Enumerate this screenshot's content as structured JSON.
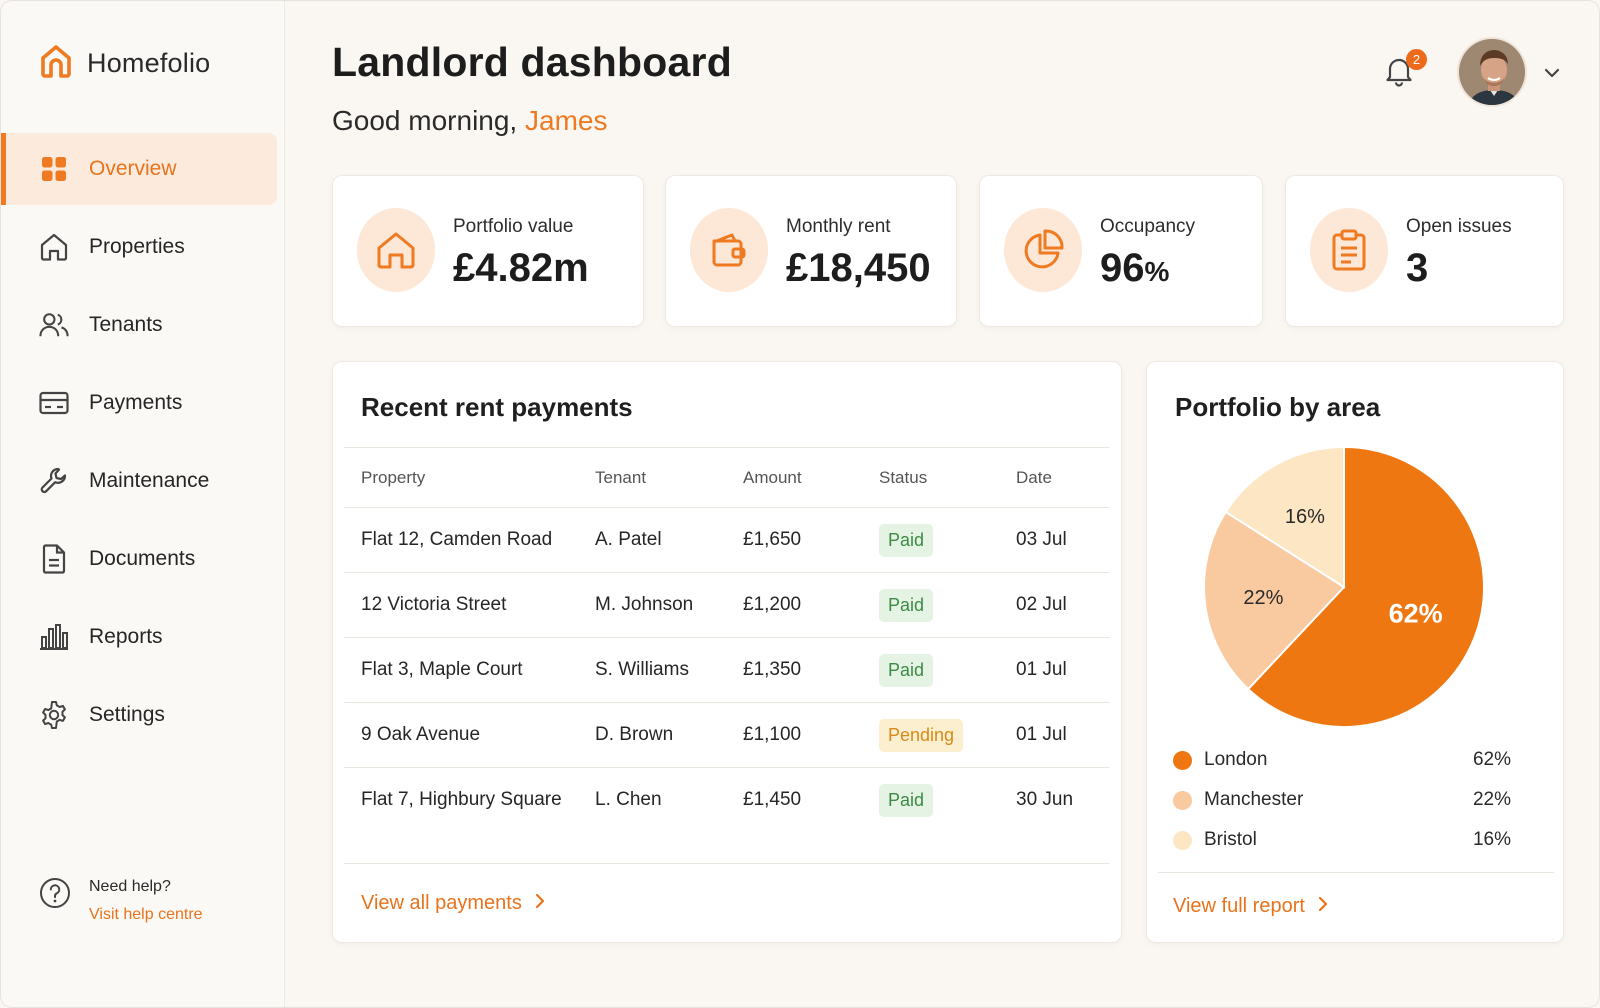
{
  "app": {
    "name": "Homefolio"
  },
  "colors": {
    "accent": "#ee7a22",
    "paid": "#3c8a45",
    "pending": "#d88a18"
  },
  "sidebar": {
    "items": [
      {
        "label": "Overview",
        "icon": "grid-icon",
        "active": true
      },
      {
        "label": "Properties",
        "icon": "house-icon"
      },
      {
        "label": "Tenants",
        "icon": "users-icon"
      },
      {
        "label": "Payments",
        "icon": "credit-card-icon"
      },
      {
        "label": "Maintenance",
        "icon": "wrench-icon"
      },
      {
        "label": "Documents",
        "icon": "document-icon"
      },
      {
        "label": "Reports",
        "icon": "bar-chart-icon"
      },
      {
        "label": "Settings",
        "icon": "gear-icon"
      }
    ],
    "help": {
      "text": "Need help?",
      "link": "Visit help centre"
    }
  },
  "header": {
    "title": "Landlord dashboard",
    "greeting_prefix": "Good morning, ",
    "user_name": "James",
    "notification_count": "2"
  },
  "kpis": [
    {
      "label": "Portfolio value",
      "value": "£4.82m",
      "unit": "",
      "icon": "house-icon"
    },
    {
      "label": "Monthly rent",
      "value": "£18,450",
      "unit": "",
      "icon": "wallet-icon"
    },
    {
      "label": "Occupancy",
      "value": "96",
      "unit": "%",
      "icon": "pie-chart-icon"
    },
    {
      "label": "Open issues",
      "value": "3",
      "unit": "",
      "icon": "clipboard-icon"
    }
  ],
  "payments": {
    "title": "Recent rent payments",
    "columns": [
      "Property",
      "Tenant",
      "Amount",
      "Status",
      "Date"
    ],
    "rows": [
      {
        "property": "Flat 12, Camden Road",
        "tenant": "A. Patel",
        "amount": "£1,650",
        "status": "Paid",
        "date": "03 Jul"
      },
      {
        "property": "12 Victoria Street",
        "tenant": "M. Johnson",
        "amount": "£1,200",
        "status": "Paid",
        "date": "02 Jul"
      },
      {
        "property": "Flat 3, Maple Court",
        "tenant": "S. Williams",
        "amount": "£1,350",
        "status": "Paid",
        "date": "01 Jul"
      },
      {
        "property": "9 Oak Avenue",
        "tenant": "D. Brown",
        "amount": "£1,100",
        "status": "Pending",
        "date": "01 Jul"
      },
      {
        "property": "Flat 7, Highbury Square",
        "tenant": "L. Chen",
        "amount": "£1,450",
        "status": "Paid",
        "date": "30 Jun"
      }
    ],
    "footer_link": "View all payments"
  },
  "portfolio": {
    "title": "Portfolio by area",
    "footer_link": "View full report"
  },
  "chart_data": {
    "type": "pie",
    "title": "Portfolio by area",
    "categories": [
      "London",
      "Manchester",
      "Bristol"
    ],
    "values": [
      62,
      22,
      16
    ],
    "labels": [
      "62%",
      "22%",
      "16%"
    ],
    "colors": [
      "#ee7712",
      "#f9c9a0",
      "#fce6c3"
    ],
    "legend": "bottom"
  }
}
